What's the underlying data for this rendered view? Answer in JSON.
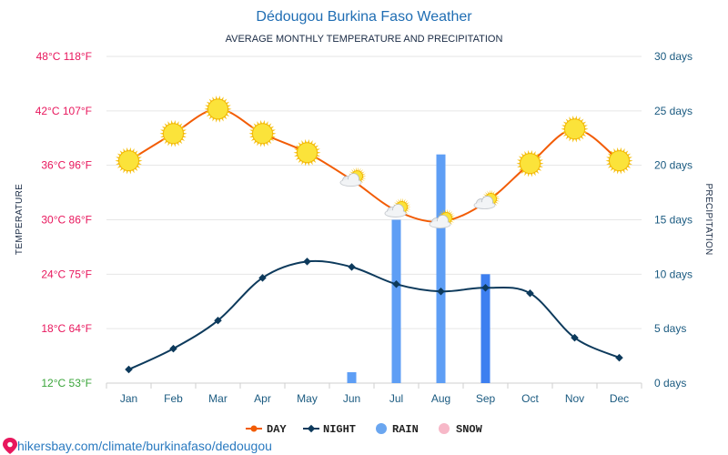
{
  "title": "Dédougou Burkina Faso Weather",
  "subtitle": "AVERAGE MONTHLY TEMPERATURE AND PRECIPITATION",
  "left_axis_label": "TEMPERATURE",
  "right_axis_label": "PRECIPITATION",
  "footer": "hikersbay.com/climate/burkinafaso/dedougou",
  "colors": {
    "day": "#f25c05",
    "night": "#0d3a5c",
    "rain": "#5e9ef5",
    "rain_dark": "#3d7ff0",
    "snow": "#f7b8c8",
    "grid": "#e6e6e6"
  },
  "chart_data": {
    "type": "line",
    "categories": [
      "Jan",
      "Feb",
      "Mar",
      "Apr",
      "May",
      "Jun",
      "Jul",
      "Aug",
      "Sep",
      "Oct",
      "Nov",
      "Dec"
    ],
    "left_ticks": [
      "12°C 53°F",
      "18°C 64°F",
      "24°C 75°F",
      "30°C 86°F",
      "36°C 96°F",
      "42°C 107°F",
      "48°C 118°F"
    ],
    "right_ticks": [
      "0 days",
      "5 days",
      "10 days",
      "15 days",
      "20 days",
      "25 days",
      "30 days"
    ],
    "ylim_temperature_c": [
      12,
      48
    ],
    "ylim_precipitation_days": [
      0,
      30
    ],
    "series": [
      {
        "name": "DAY",
        "values": [
          36.5,
          39.5,
          42.2,
          39.5,
          37.4,
          34.4,
          31.0,
          29.8,
          31.9,
          36.2,
          40.0,
          36.5
        ],
        "icons": [
          "sun-icon",
          "sun-icon",
          "sun-icon",
          "sun-icon",
          "sun-icon",
          "partly-cloudy-icon",
          "partly-cloudy-icon",
          "partly-cloudy-icon",
          "partly-cloudy-icon",
          "sun-icon",
          "sun-icon",
          "sun-icon"
        ]
      },
      {
        "name": "NIGHT",
        "values": [
          13.5,
          15.8,
          18.9,
          23.6,
          25.4,
          24.8,
          22.9,
          22.1,
          22.5,
          21.9,
          17.0,
          14.8
        ]
      },
      {
        "name": "RAIN",
        "values": [
          0,
          0,
          0,
          0,
          0,
          1,
          15,
          21,
          10,
          0,
          0,
          0
        ]
      },
      {
        "name": "SNOW",
        "values": [
          0,
          0,
          0,
          0,
          0,
          0,
          0,
          0,
          0,
          0,
          0,
          0
        ]
      }
    ],
    "legend": [
      "DAY",
      "NIGHT",
      "RAIN",
      "SNOW"
    ],
    "legend_position": "bottom",
    "grid": true
  }
}
